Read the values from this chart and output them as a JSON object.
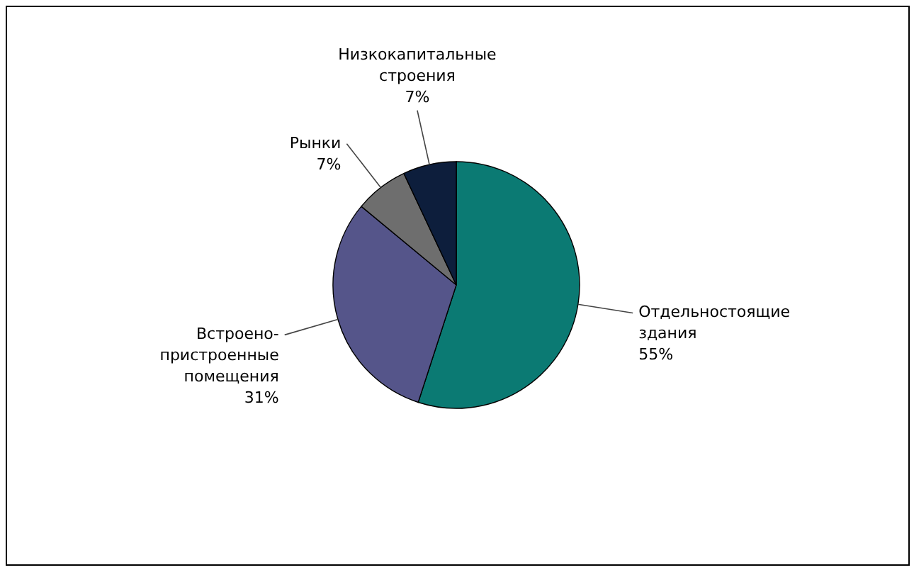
{
  "chart_data": {
    "type": "pie",
    "categories": [
      "Отдельностоящие здания",
      "Встроено-пристроенные помещения",
      "Рынки",
      "Низкокапитальные строения"
    ],
    "values": [
      55,
      31,
      7,
      7
    ],
    "value_labels": [
      "55%",
      "31%",
      "7%",
      "7%"
    ],
    "colors": [
      "#0b7a73",
      "#55558a",
      "#6e6e6e",
      "#0d1e3c"
    ]
  }
}
